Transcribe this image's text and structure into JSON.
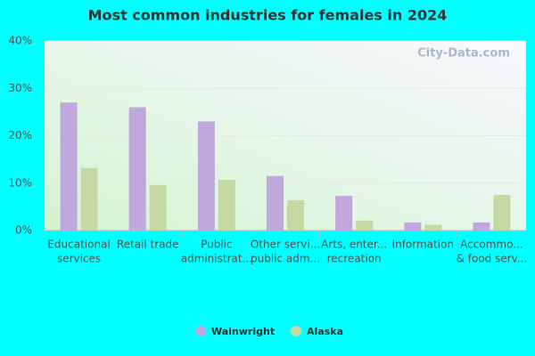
{
  "chart_data": {
    "type": "bar",
    "title": "Most common industries for females in 2024",
    "watermark": "City-Data.com",
    "categories": [
      [
        "Educational",
        "services"
      ],
      [
        "Retail trade"
      ],
      [
        "Public",
        "administrat..."
      ],
      [
        "Other servi...",
        "public adm..."
      ],
      [
        "Arts, enter...",
        "recreation"
      ],
      [
        "Information"
      ],
      [
        "Accommo...",
        "& food serv..."
      ]
    ],
    "series": [
      {
        "name": "Wainwright",
        "color": "#c0a8dc",
        "values": [
          27,
          26,
          23,
          11.5,
          7.3,
          1.7,
          1.7
        ]
      },
      {
        "name": "Alaska",
        "color": "#c5d8a4",
        "values": [
          13.2,
          9.6,
          10.7,
          6.4,
          2.1,
          1.2,
          7.5
        ]
      }
    ],
    "ylim": [
      0,
      40
    ],
    "yticks": [
      {
        "value": 0,
        "label": "0%"
      },
      {
        "value": 10,
        "label": "10%"
      },
      {
        "value": 20,
        "label": "20%"
      },
      {
        "value": 30,
        "label": "30%"
      },
      {
        "value": 40,
        "label": "40%"
      }
    ],
    "grid": true
  }
}
